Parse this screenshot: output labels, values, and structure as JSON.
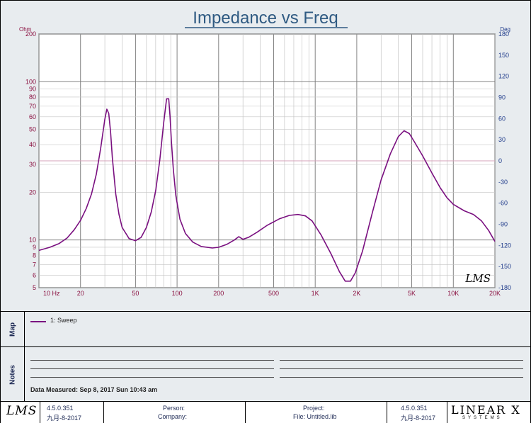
{
  "chart_data": {
    "type": "line",
    "title": "Impedance vs Freq",
    "y_unit_left": "Ohm",
    "y_unit_right": "Deg",
    "x_scale": "log",
    "y_scale": "log",
    "xlim": [
      10,
      20000
    ],
    "ylim": [
      5,
      200
    ],
    "y2lim": [
      -180,
      180
    ],
    "x_ticks": [
      "10 Hz",
      "20",
      "50",
      "100",
      "200",
      "500",
      "1K",
      "2K",
      "5K",
      "10K",
      "20K"
    ],
    "y_ticks": [
      "5",
      "6",
      "7",
      "8",
      "9",
      "10",
      "20",
      "30",
      "40",
      "50",
      "60",
      "70",
      "80",
      "90",
      "100",
      "200"
    ],
    "y2_ticks": [
      "180",
      "150",
      "120",
      "90",
      "60",
      "30",
      "0",
      "-30",
      "-60",
      "-90",
      "-120",
      "-150",
      "-180"
    ],
    "grid": true,
    "reference_line_deg": 0,
    "series": [
      {
        "name": "1: Sweep",
        "color": "#7a1080",
        "x": [
          10,
          12,
          14,
          16,
          18,
          20,
          22,
          24,
          26,
          28,
          30,
          31,
          32,
          33,
          34,
          36,
          38,
          40,
          45,
          50,
          55,
          60,
          65,
          70,
          75,
          80,
          84,
          87,
          89,
          91,
          94,
          98,
          105,
          115,
          130,
          150,
          180,
          200,
          230,
          260,
          280,
          300,
          330,
          380,
          450,
          550,
          650,
          750,
          850,
          950,
          1100,
          1300,
          1500,
          1650,
          1800,
          1950,
          2200,
          2600,
          3000,
          3500,
          4000,
          4400,
          4800,
          5200,
          6000,
          7000,
          8000,
          9000,
          10000,
          12000,
          14000,
          16000,
          18000,
          20000
        ],
        "values": [
          8.6,
          9.0,
          9.5,
          10.3,
          11.6,
          13.3,
          15.8,
          19.5,
          26.0,
          38.0,
          58.0,
          67.0,
          63.0,
          48.0,
          33.0,
          19.5,
          14.5,
          12.0,
          10.2,
          9.9,
          10.4,
          12.0,
          15.0,
          20.5,
          32.0,
          55.0,
          78.0,
          78.0,
          60.0,
          42.0,
          28.0,
          19.0,
          13.5,
          11.0,
          9.7,
          9.1,
          8.9,
          9.0,
          9.4,
          10.0,
          10.5,
          10.1,
          10.4,
          11.2,
          12.4,
          13.6,
          14.3,
          14.5,
          14.2,
          13.2,
          10.8,
          8.2,
          6.3,
          5.5,
          5.5,
          6.2,
          8.5,
          15.0,
          24.0,
          35.0,
          45.0,
          49.0,
          47.0,
          42.0,
          34.0,
          26.5,
          21.5,
          18.5,
          16.8,
          15.3,
          14.5,
          13.2,
          11.5,
          9.8
        ]
      }
    ]
  },
  "chart_meta": {
    "brand_mark": "LMS"
  },
  "map": {
    "label": "Map",
    "legend": [
      {
        "label": "1: Sweep",
        "color": "#7a1080"
      }
    ]
  },
  "notes": {
    "label": "Notes",
    "measured": "Data Measured: Sep 8, 2017 Sun 10:43 am"
  },
  "footer": {
    "logo_left": "LMS",
    "version_left": "4.5.0.351",
    "date_left": "九月-8-2017",
    "person_label": "Person:",
    "company_label": "Company:",
    "project_label": "Project:",
    "file_label": "File: Untitled.lib",
    "version_right": "4.5.0.351",
    "date_right": "九月-8-2017",
    "brand_word": "LINEAR X",
    "brand_sub": "SYSTEMS"
  }
}
